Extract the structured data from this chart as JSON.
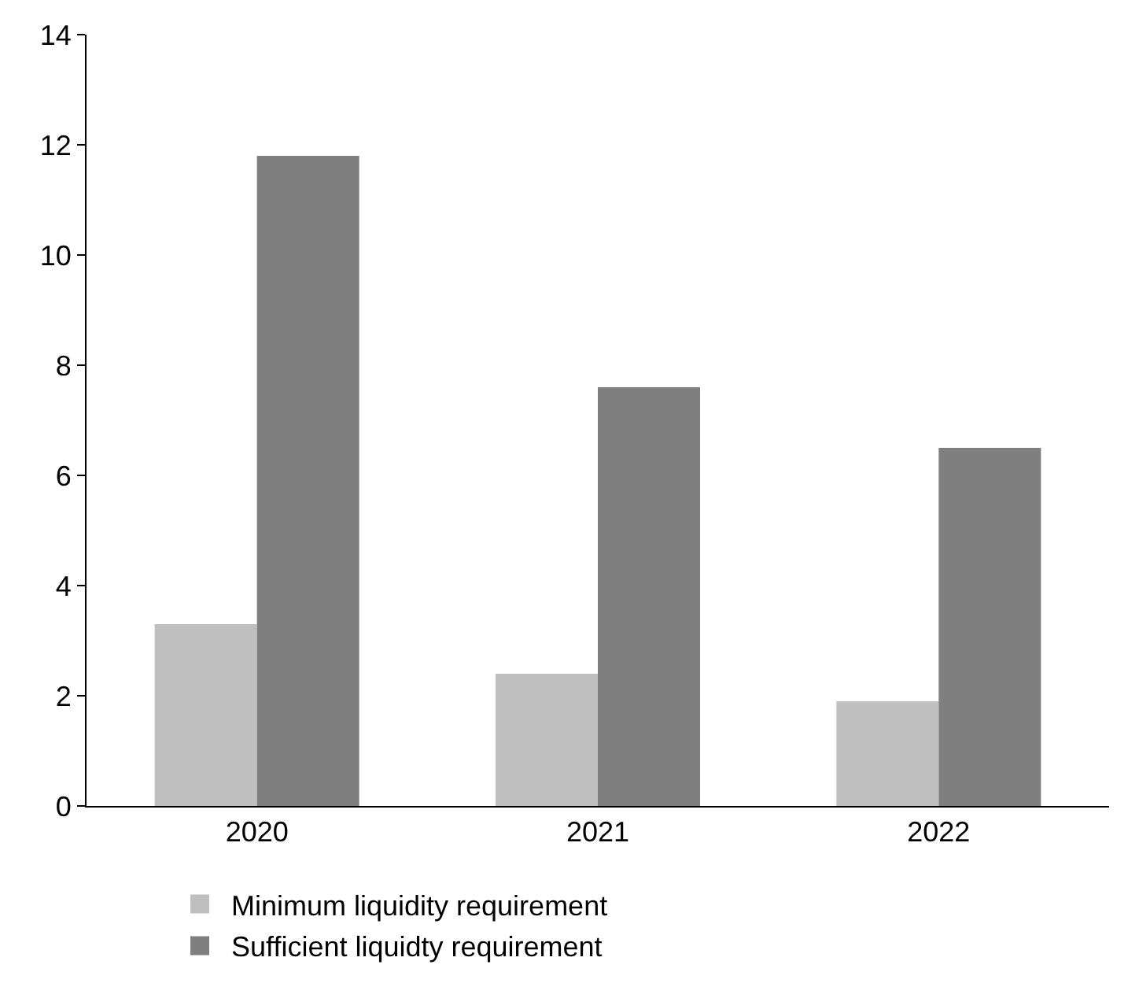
{
  "chart_data": {
    "type": "bar",
    "categories": [
      "2020",
      "2021",
      "2022"
    ],
    "series": [
      {
        "name": "Minimum liquidity requirement",
        "color": "#bfbfbf",
        "values": [
          3.3,
          2.4,
          1.9
        ]
      },
      {
        "name": "Sufficient liquidty requirement",
        "color": "#7f7f7f",
        "values": [
          11.8,
          7.6,
          6.5
        ]
      }
    ],
    "ylim": [
      0,
      14
    ],
    "yticks": [
      0,
      2,
      4,
      6,
      8,
      10,
      12,
      14
    ],
    "grid": false,
    "legend": "bottom left"
  }
}
